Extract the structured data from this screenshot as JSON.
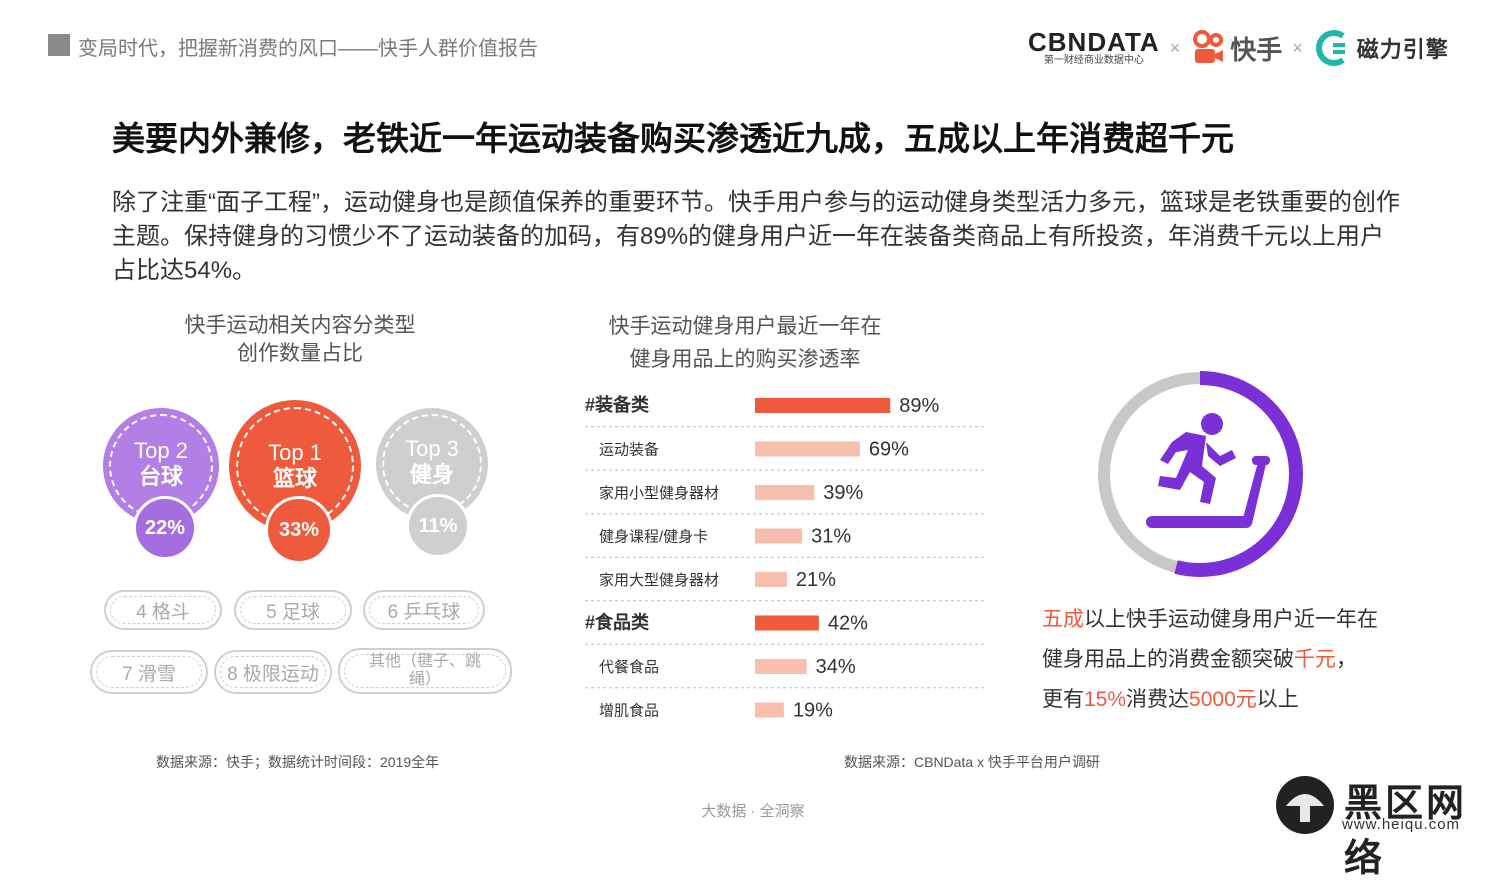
{
  "header": {
    "report_title": "变局时代，把握新消费的风口——快手人群价值报告",
    "logo_cbn": "CBNDATA",
    "logo_cbn_sub": "第一财经商业数据中心",
    "logo_sep": "×",
    "logo_kuaishou": "快手",
    "logo_cili": "磁力引擎"
  },
  "main_title": "美要内外兼修，老铁近一年运动装备购买渗透近九成，五成以上年消费超千元",
  "intro": "除了注重“面子工程”，运动健身也是颜值保养的重要环节。快手用户参与的运动健身类型活力多元，篮球是老铁重要的创作主题。保持健身的习惯少不了运动装备的加码，有89%的健身用户近一年在装备类商品上有所投资，年消费千元以上用户占比达54%。",
  "left_panel": {
    "title_line1": "快手运动相关内容分类型",
    "title_line2": "创作数量占比",
    "tops": [
      {
        "rank": "Top 2",
        "name": "台球",
        "pct": "22%",
        "color": "#b37ee6",
        "pct_color": "#a56ee0"
      },
      {
        "rank": "Top 1",
        "name": "篮球",
        "pct": "33%",
        "color": "#f05a3c",
        "pct_color": "#f05a3c"
      },
      {
        "rank": "Top 3",
        "name": "健身",
        "pct": "11%",
        "color": "#cfcfcf",
        "pct_color": "#cfcfcf"
      }
    ],
    "others": [
      "4 格斗",
      "5 足球",
      "6 乒乓球",
      "7 滑雪",
      "8 极限运动",
      "其他（毽子、跳绳）"
    ],
    "source": "数据来源：快手；数据统计时间段：2019全年"
  },
  "chart_data": {
    "type": "bar",
    "orientation": "horizontal",
    "title": "快手运动健身用户最近一年在健身用品上的购买渗透率",
    "title_line1": "快手运动健身用户最近一年在",
    "title_line2": "健身用品上的购买渗透率",
    "categories": [
      "#装备类",
      "运动装备",
      "家用小型健身器材",
      "健身课程/健身卡",
      "家用大型健身器材",
      "#食品类",
      "代餐食品",
      "增肌食品"
    ],
    "values": [
      89,
      69,
      39,
      31,
      21,
      42,
      34,
      19
    ],
    "value_labels": [
      "89%",
      "69%",
      "39%",
      "31%",
      "21%",
      "42%",
      "34%",
      "19%"
    ],
    "is_group": [
      true,
      false,
      false,
      false,
      false,
      true,
      false,
      false
    ],
    "unit": "%",
    "colors": {
      "group": "#f05a3c",
      "item": "#f8bfae"
    },
    "source": "数据来源：CBNData x 快手平台用户调研"
  },
  "right_panel": {
    "donut_value": 54,
    "donut_colors": {
      "fill": "#7b2fd6",
      "track": "#c8c8c8"
    },
    "icon": "treadmill-runner-icon",
    "line1_hl": "五成",
    "line1_rest": "以上快手运动健身用户近一年在",
    "line2_pre": "健身用品上的消费金额突破",
    "line2_hl": "千元",
    "line2_post": "，",
    "line3_pre": "更有",
    "line3_hl1": "15%",
    "line3_mid": "消费达",
    "line3_hl2": "5000元",
    "line3_post": "以上"
  },
  "footer": "大数据 · 全洞察",
  "watermark": {
    "text": "黑区网络",
    "url": "www.heiqu.com"
  }
}
